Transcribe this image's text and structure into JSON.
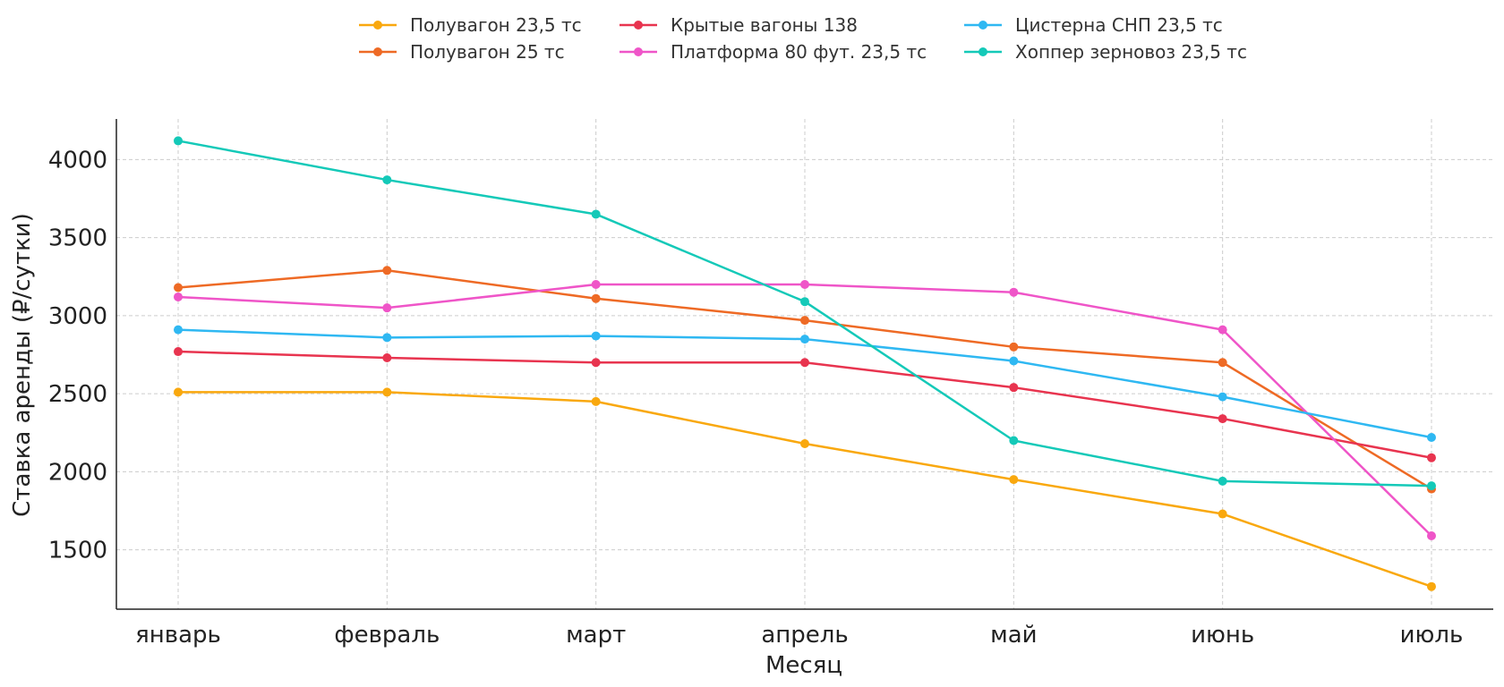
{
  "chart_data": {
    "type": "line",
    "xlabel": "Месяц",
    "ylabel": "Ставка аренды (₽/сутки)",
    "categories": [
      "январь",
      "февраль",
      "март",
      "апрель",
      "май",
      "июнь",
      "июль"
    ],
    "ylim": [
      1120,
      4260
    ],
    "yticks": [
      1500,
      2000,
      2500,
      3000,
      3500,
      4000
    ],
    "grid": true,
    "legend_position": "top-center",
    "series": [
      {
        "name": "Полувагон 23,5 тс",
        "color": "#f9a80e",
        "values": [
          2510,
          2510,
          2450,
          2180,
          1950,
          1730,
          1265
        ]
      },
      {
        "name": "Полувагон 25 тс",
        "color": "#ee6a25",
        "values": [
          3180,
          3290,
          3110,
          2970,
          2800,
          2700,
          1890
        ]
      },
      {
        "name": "Крытые вагоны 138",
        "color": "#e8344f",
        "values": [
          2770,
          2730,
          2700,
          2700,
          2540,
          2340,
          2090
        ]
      },
      {
        "name": "Платформа 80 фут. 23,5 тс",
        "color": "#ef55c8",
        "values": [
          3120,
          3050,
          3200,
          3200,
          3150,
          2910,
          1590
        ]
      },
      {
        "name": "Цистерна СНП 23,5 тс",
        "color": "#2fb8f2",
        "values": [
          2910,
          2860,
          2870,
          2850,
          2710,
          2480,
          2220
        ]
      },
      {
        "name": "Хоппер зерновоз 23,5 тс",
        "color": "#14c9b8",
        "values": [
          4120,
          3870,
          3650,
          3090,
          2200,
          1940,
          1910
        ]
      }
    ]
  }
}
